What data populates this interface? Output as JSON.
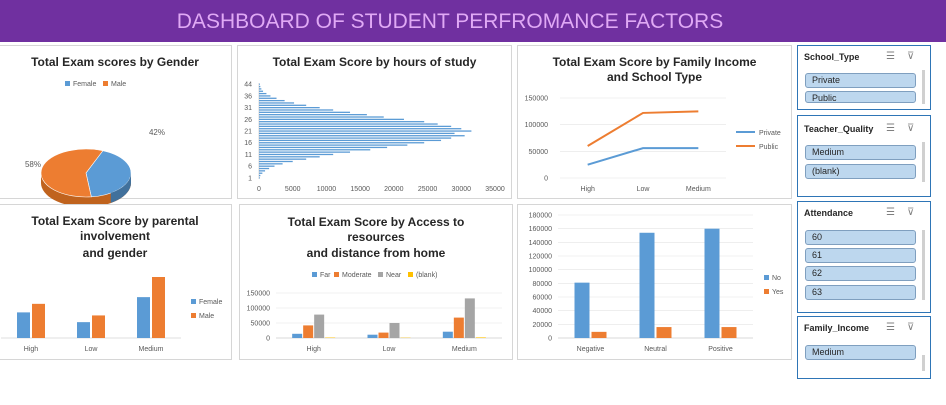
{
  "header": {
    "title": "DASHBOARD OF STUDENT PERFROMANCE FACTORS"
  },
  "colors": {
    "banner": "#7030a0",
    "banner_text": "#e0a9f5",
    "blue": "#5b9bd5",
    "orange": "#ed7d31",
    "gray": "#a5a5a5",
    "yellow": "#ffc000",
    "slicer_item": "#bdd7ee",
    "slicer_border": "#2e75b6"
  },
  "chart_data": [
    {
      "id": "gender",
      "type": "pie",
      "title": "Total Exam scores by Gender",
      "legend": "top",
      "categories": [
        "Female",
        "Male"
      ],
      "values": [
        42,
        58
      ],
      "labels": [
        "42%",
        "58%"
      ]
    },
    {
      "id": "hours",
      "type": "bar",
      "orientation": "horizontal",
      "title": "Total Exam Score by hours of study",
      "y_ticks": [
        "1",
        "6",
        "11",
        "16",
        "21",
        "26",
        "31",
        "36",
        "44"
      ],
      "x_ticks": [
        "0",
        "5000",
        "10000",
        "15000",
        "20000",
        "25000",
        "30000",
        "35000"
      ],
      "xlim": [
        0,
        35000
      ],
      "categories": [
        1,
        2,
        3,
        4,
        5,
        6,
        7,
        8,
        9,
        10,
        11,
        12,
        13,
        14,
        15,
        16,
        17,
        18,
        19,
        20,
        21,
        22,
        23,
        24,
        25,
        26,
        27,
        28,
        29,
        30,
        31,
        32,
        33,
        34,
        35,
        36,
        37,
        38,
        39,
        43,
        44
      ],
      "values": [
        120,
        200,
        500,
        900,
        1500,
        2300,
        3500,
        5000,
        7000,
        9000,
        11000,
        13500,
        16500,
        19000,
        22000,
        24500,
        27000,
        28500,
        30500,
        29000,
        31500,
        30000,
        28500,
        26500,
        24500,
        21500,
        18500,
        16000,
        13500,
        11000,
        9000,
        7000,
        5200,
        3800,
        2600,
        1700,
        1100,
        600,
        350,
        200,
        120
      ]
    },
    {
      "id": "income",
      "type": "line",
      "title": "Total Exam Score by Family Income and School Type",
      "title_lines": [
        "Total Exam Score by Family Income",
        "and School Type"
      ],
      "legend": "right",
      "categories": [
        "High",
        "Low",
        "Medium"
      ],
      "y_ticks": [
        "0",
        "50000",
        "100000",
        "150000"
      ],
      "ylim": [
        0,
        150000
      ],
      "series": [
        {
          "name": "Private",
          "values": [
            25000,
            56000,
            56000
          ]
        },
        {
          "name": "Public",
          "values": [
            60000,
            122000,
            125000
          ]
        }
      ]
    },
    {
      "id": "parental",
      "type": "bar",
      "title": "Total Exam Score by parental involvement and gender",
      "title_lines": [
        "Total Exam Score by parental",
        "involvement",
        "and gender"
      ],
      "legend": "right",
      "categories": [
        "High",
        "Low",
        "Medium"
      ],
      "ylim": [
        0,
        100000
      ],
      "series": [
        {
          "name": "Female",
          "values": [
            42000,
            26000,
            67000
          ]
        },
        {
          "name": "Male",
          "values": [
            56000,
            37000,
            100000
          ]
        }
      ]
    },
    {
      "id": "access",
      "type": "bar",
      "title": "Total Exam Score by Access to resources and distance from home",
      "title_lines": [
        "Total Exam Score by Access to",
        "resources",
        "and distance from home"
      ],
      "legend": "top",
      "categories": [
        "High",
        "Low",
        "Medium"
      ],
      "y_ticks": [
        "0",
        "50000",
        "100000",
        "150000"
      ],
      "ylim": [
        0,
        150000
      ],
      "series": [
        {
          "name": "Far",
          "values": [
            14000,
            11000,
            21000
          ]
        },
        {
          "name": "Moderate",
          "values": [
            42000,
            18000,
            68000
          ]
        },
        {
          "name": "Near",
          "values": [
            78000,
            50000,
            132000
          ]
        },
        {
          "name": "(blank)",
          "values": [
            1500,
            1000,
            2000
          ]
        }
      ]
    },
    {
      "id": "peer",
      "type": "bar",
      "title": "",
      "legend": "right",
      "categories": [
        "Negative",
        "Neutral",
        "Positive"
      ],
      "y_ticks": [
        "0",
        "20000",
        "40000",
        "60000",
        "80000",
        "100000",
        "120000",
        "140000",
        "160000",
        "180000"
      ],
      "ylim": [
        0,
        180000
      ],
      "series": [
        {
          "name": "No",
          "values": [
            81000,
            154000,
            160000
          ]
        },
        {
          "name": "Yes",
          "values": [
            9000,
            16000,
            16000
          ]
        }
      ]
    }
  ],
  "slicers": [
    {
      "title": "School_Type",
      "items": [
        "Private",
        "Public"
      ]
    },
    {
      "title": "Teacher_Quality",
      "items": [
        "Medium",
        "(blank)"
      ]
    },
    {
      "title": "Attendance",
      "items": [
        "60",
        "61",
        "62",
        "63"
      ]
    },
    {
      "title": "Family_Income",
      "items": [
        "Medium"
      ]
    }
  ],
  "icons": {
    "multiselect": "multi-select-icon",
    "clear_filter": "clear-filter-icon"
  }
}
